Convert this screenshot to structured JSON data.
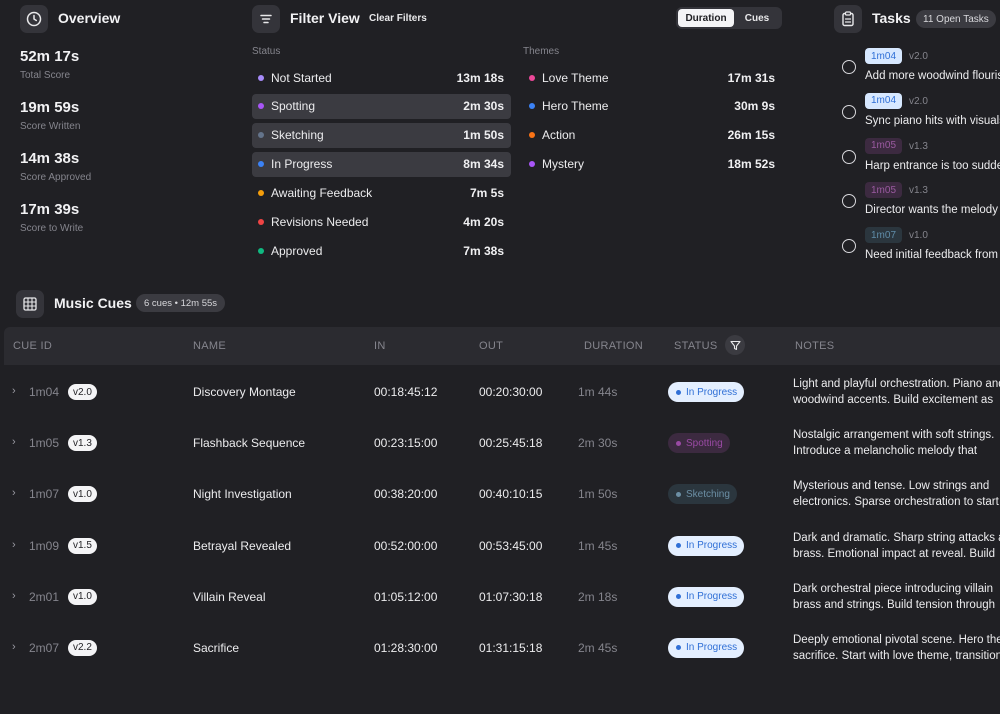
{
  "overview": {
    "title": "Overview",
    "stats": [
      {
        "value": "52m 17s",
        "label": "Total Score"
      },
      {
        "value": "19m 59s",
        "label": "Score Written"
      },
      {
        "value": "14m 38s",
        "label": "Score Approved"
      },
      {
        "value": "17m 39s",
        "label": "Score to Write"
      }
    ]
  },
  "filter": {
    "title": "Filter View",
    "clear_label": "Clear Filters",
    "toggle": {
      "duration": "Duration",
      "cues": "Cues",
      "active": "Duration"
    },
    "status_heading": "Status",
    "statuses": [
      {
        "name": "Not Started",
        "duration": "13m 18s",
        "color": "#a78bfa",
        "selected": false
      },
      {
        "name": "Spotting",
        "duration": "2m 30s",
        "color": "#a855f7",
        "selected": true
      },
      {
        "name": "Sketching",
        "duration": "1m 50s",
        "color": "#64748b",
        "selected": true
      },
      {
        "name": "In Progress",
        "duration": "8m 34s",
        "color": "#3b82f6",
        "selected": true
      },
      {
        "name": "Awaiting Feedback",
        "duration": "7m 5s",
        "color": "#f59e0b",
        "selected": false
      },
      {
        "name": "Revisions Needed",
        "duration": "4m 20s",
        "color": "#ef4444",
        "selected": false
      },
      {
        "name": "Approved",
        "duration": "7m 38s",
        "color": "#10b981",
        "selected": false
      }
    ],
    "themes_heading": "Themes",
    "themes": [
      {
        "name": "Love Theme",
        "duration": "17m 31s",
        "color": "#ec4899"
      },
      {
        "name": "Hero Theme",
        "duration": "30m 9s",
        "color": "#3b82f6"
      },
      {
        "name": "Action",
        "duration": "26m 15s",
        "color": "#f97316"
      },
      {
        "name": "Mystery",
        "duration": "18m 52s",
        "color": "#a855f7"
      }
    ]
  },
  "tasks": {
    "title": "Tasks",
    "badge": "11 Open Tasks",
    "items": [
      {
        "tag": "1m04",
        "tag_style": "blue",
        "version": "v2.0",
        "text": "Add more woodwind flourishes"
      },
      {
        "tag": "1m04",
        "tag_style": "blue",
        "version": "v2.0",
        "text": "Sync piano hits with visuals"
      },
      {
        "tag": "1m05",
        "tag_style": "purple",
        "version": "v1.3",
        "text": "Harp entrance is too sudden"
      },
      {
        "tag": "1m05",
        "tag_style": "purple",
        "version": "v1.3",
        "text": "Director wants the melody"
      },
      {
        "tag": "1m07",
        "tag_style": "teal",
        "version": "v1.0",
        "text": "Need initial feedback from"
      }
    ]
  },
  "cues": {
    "title": "Music Cues",
    "badge": "6 cues • 12m 55s",
    "columns": {
      "cue_id": "CUE ID",
      "name": "NAME",
      "in": "IN",
      "out": "OUT",
      "duration": "DURATION",
      "status": "STATUS",
      "notes": "NOTES"
    },
    "rows": [
      {
        "cue_id": "1m04",
        "version": "v2.0",
        "name": "Discovery Montage",
        "in": "00:18:45:12",
        "out": "00:20:30:00",
        "duration": "1m 44s",
        "status": "In Progress",
        "status_style": "prog",
        "notes_line1": "Light and playful orchestration. Piano and",
        "notes_line2": "woodwind accents. Build excitement as"
      },
      {
        "cue_id": "1m05",
        "version": "v1.3",
        "name": "Flashback Sequence",
        "in": "00:23:15:00",
        "out": "00:25:45:18",
        "duration": "2m 30s",
        "status": "Spotting",
        "status_style": "spot",
        "notes_line1": "Nostalgic arrangement with soft strings.",
        "notes_line2": "Introduce a melancholic melody that"
      },
      {
        "cue_id": "1m07",
        "version": "v1.0",
        "name": "Night Investigation",
        "in": "00:38:20:00",
        "out": "00:40:10:15",
        "duration": "1m 50s",
        "status": "Sketching",
        "status_style": "sket",
        "notes_line1": "Mysterious and tense. Low strings and",
        "notes_line2": "electronics. Sparse orchestration to start"
      },
      {
        "cue_id": "1m09",
        "version": "v1.5",
        "name": "Betrayal Revealed",
        "in": "00:52:00:00",
        "out": "00:53:45:00",
        "duration": "1m 45s",
        "status": "In Progress",
        "status_style": "prog",
        "notes_line1": "Dark and dramatic. Sharp string attacks and",
        "notes_line2": "brass. Emotional impact at reveal. Build"
      },
      {
        "cue_id": "2m01",
        "version": "v1.0",
        "name": "Villain Reveal",
        "in": "01:05:12:00",
        "out": "01:07:30:18",
        "duration": "2m 18s",
        "status": "In Progress",
        "status_style": "prog",
        "notes_line1": "Dark orchestral piece introducing villain",
        "notes_line2": "brass and strings. Build tension through"
      },
      {
        "cue_id": "2m07",
        "version": "v2.2",
        "name": "Sacrifice",
        "in": "01:28:30:00",
        "out": "01:31:15:18",
        "duration": "2m 45s",
        "status": "In Progress",
        "status_style": "prog",
        "notes_line1": "Deeply emotional pivotal scene. Hero theme",
        "notes_line2": "sacrifice. Start with love theme, transition"
      }
    ]
  }
}
